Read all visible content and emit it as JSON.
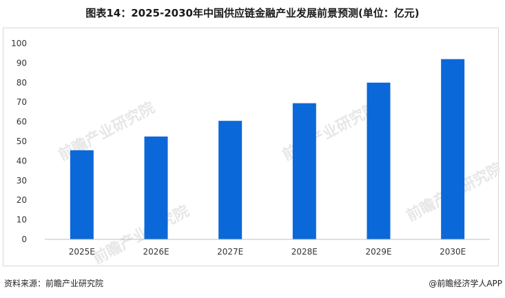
{
  "header": {
    "title": "图表14：2025-2030年中国供应链金融产业发展前景预测(单位：亿元)"
  },
  "chart_data": {
    "type": "bar",
    "title": "图表14：2025-2030年中国供应链金融产业发展前景预测(单位：亿元)",
    "categories": [
      "2025E",
      "2026E",
      "2027E",
      "2028E",
      "2029E",
      "2030E"
    ],
    "values": [
      45.5,
      52.5,
      60.5,
      69.5,
      80,
      92
    ],
    "ylim": [
      0,
      100
    ],
    "yticks": [
      0,
      10,
      20,
      30,
      40,
      50,
      60,
      70,
      80,
      90,
      100
    ],
    "xlabel": "",
    "ylabel": "",
    "grid": false,
    "bar_color": "#0b68d8"
  },
  "footer": {
    "source": "资料来源：前瞻产业研究院",
    "brand": "@前瞻经济学人APP"
  },
  "watermark": {
    "text": "前瞻产业研究院"
  }
}
